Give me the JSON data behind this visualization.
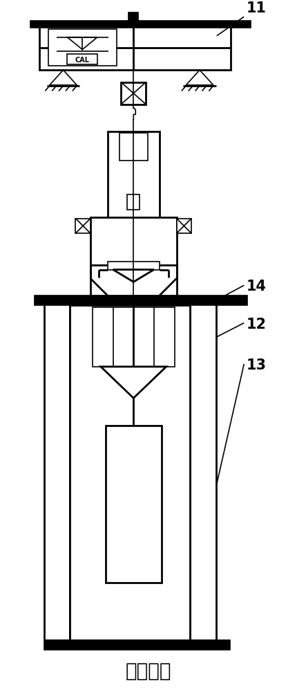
{
  "title": "第一档位",
  "label_11": "11",
  "label_12": "12",
  "label_13": "13",
  "label_14": "14",
  "cal_text": "CAL",
  "bg_color": "#ffffff",
  "line_color": "#000000",
  "lw_thin": 1.2,
  "lw_med": 2.0,
  "lw_thick": 3.5
}
